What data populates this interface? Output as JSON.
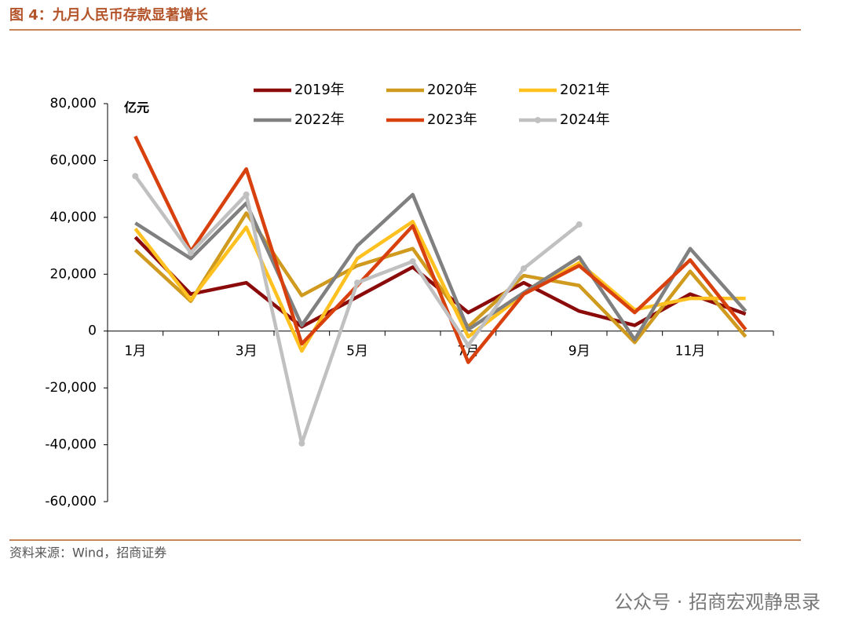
{
  "title": "图 4：九月人民币存款显著增长",
  "source": "资料来源：Wind，招商证券",
  "watermark": "公众号 · 招商宏观静思录",
  "chart_data": {
    "type": "line",
    "unit": "亿元",
    "categories": [
      "1月",
      null,
      "3月",
      null,
      "5月",
      null,
      "7月",
      null,
      "9月",
      null,
      "11月",
      null
    ],
    "ylim": [
      -60000,
      80000
    ],
    "yticks": [
      {
        "value": -60000,
        "label": "-60,000"
      },
      {
        "value": -40000,
        "label": "-40,000"
      },
      {
        "value": -20000,
        "label": "-20,000"
      },
      0,
      {
        "value": 20000,
        "label": "20,000"
      },
      {
        "value": 40000,
        "label": "40,000"
      },
      {
        "value": 60000,
        "label": "60,000"
      },
      {
        "value": 80000,
        "label": "80,000"
      }
    ],
    "series": [
      {
        "name": "2019年",
        "color": "#8b0a0a",
        "values": [
          33000,
          13000,
          17000,
          1500,
          12000,
          22500,
          6500,
          17000,
          7000,
          2000,
          13000,
          6000
        ]
      },
      {
        "name": "2020年",
        "color": "#d09a1e",
        "values": [
          28500,
          10500,
          41500,
          12500,
          23000,
          29000,
          1500,
          19500,
          16000,
          -4000,
          21000,
          -2000
        ]
      },
      {
        "name": "2021年",
        "color": "#ffc11f",
        "values": [
          36000,
          11000,
          36500,
          -7000,
          25500,
          38500,
          -2000,
          13000,
          24000,
          7500,
          11500,
          11500
        ]
      },
      {
        "name": "2022年",
        "color": "#808080",
        "values": [
          38000,
          25500,
          45000,
          2000,
          30000,
          48000,
          500,
          13500,
          26000,
          -3000,
          29000,
          7000
        ]
      },
      {
        "name": "2023年",
        "color": "#d8400e",
        "values": [
          68500,
          28000,
          57000,
          -4500,
          16000,
          37000,
          -11000,
          13000,
          23000,
          6500,
          25000,
          500
        ]
      },
      {
        "name": "2024年",
        "color": "#c0c0c0",
        "markers": true,
        "values": [
          54500,
          27500,
          48000,
          -39500,
          17000,
          24500,
          -5000,
          22000,
          37500,
          null,
          null,
          null
        ]
      }
    ]
  }
}
